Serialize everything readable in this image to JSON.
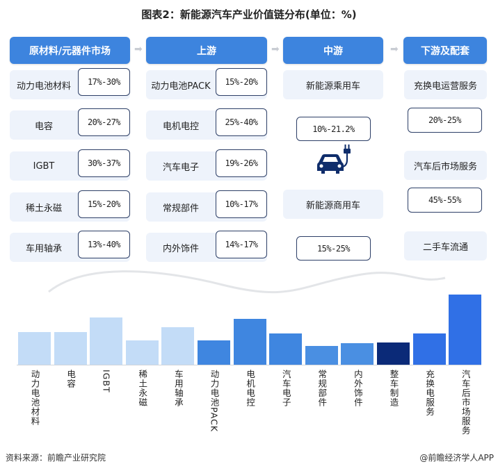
{
  "title": "图表2：新能源汽车产业价值链分布(单位：%)",
  "columns": [
    {
      "header": "原材料/元器件市场",
      "rows": [
        {
          "label": "动力电池材料",
          "value": "17%-30%"
        },
        {
          "label": "电容",
          "value": "20%-27%"
        },
        {
          "label": "IGBT",
          "value": "30%-37%"
        },
        {
          "label": "稀土永磁",
          "value": "15%-20%"
        },
        {
          "label": "车用轴承",
          "value": "13%-40%"
        }
      ]
    },
    {
      "header": "上游",
      "rows": [
        {
          "label": "动力电池PACK",
          "value": "15%-20%"
        },
        {
          "label": "电机电控",
          "value": "25%-40%"
        },
        {
          "label": "汽车电子",
          "value": "19%-26%"
        },
        {
          "label": "常规部件",
          "value": "10%-17%"
        },
        {
          "label": "内外饰件",
          "value": "14%-17%"
        }
      ]
    },
    {
      "header": "中游",
      "rows": [
        {
          "label": "新能源乘用车",
          "value": "10%-21.2%"
        },
        {
          "label": "新能源商用车",
          "value": "15%-25%"
        }
      ]
    },
    {
      "header": "下游及配套",
      "rows": [
        {
          "label": "充换电运营服务",
          "value": "20%-25%"
        },
        {
          "label": "汽车后市场服务",
          "value": "45%-55%"
        },
        {
          "label": "二手车流通",
          "value": null
        }
      ]
    }
  ],
  "icons": {
    "arrow": "arrow-right-icon",
    "ev": "electric-car-plug-icon"
  },
  "chart_data": {
    "type": "bar",
    "categories": [
      "动力电池材料",
      "电容",
      "IGBT",
      "稀土永磁",
      "车用轴承",
      "动力电池PACK",
      "电机电控",
      "汽车电子",
      "常规部件",
      "内外饰件",
      "整车制造",
      "充换电服务",
      "汽车后市场服务"
    ],
    "values": [
      23.5,
      23.5,
      33.5,
      17.5,
      26.5,
      17.5,
      32.5,
      22.5,
      13.5,
      15.5,
      15.6,
      22.5,
      50
    ],
    "colors": [
      "#c3dcf7",
      "#c3dcf7",
      "#c3dcf7",
      "#c3dcf7",
      "#c3dcf7",
      "#3f86e0",
      "#3f86e0",
      "#3f86e0",
      "#4a8fe2",
      "#4a8fe2",
      "#0b2a78",
      "#3070e6",
      "#3070e6"
    ],
    "ylim": [
      0,
      50
    ],
    "grid": false,
    "legend": "none"
  },
  "footer": {
    "source": "资料来源：前瞻产业研究院",
    "credit": "@前瞻经济学人APP"
  }
}
